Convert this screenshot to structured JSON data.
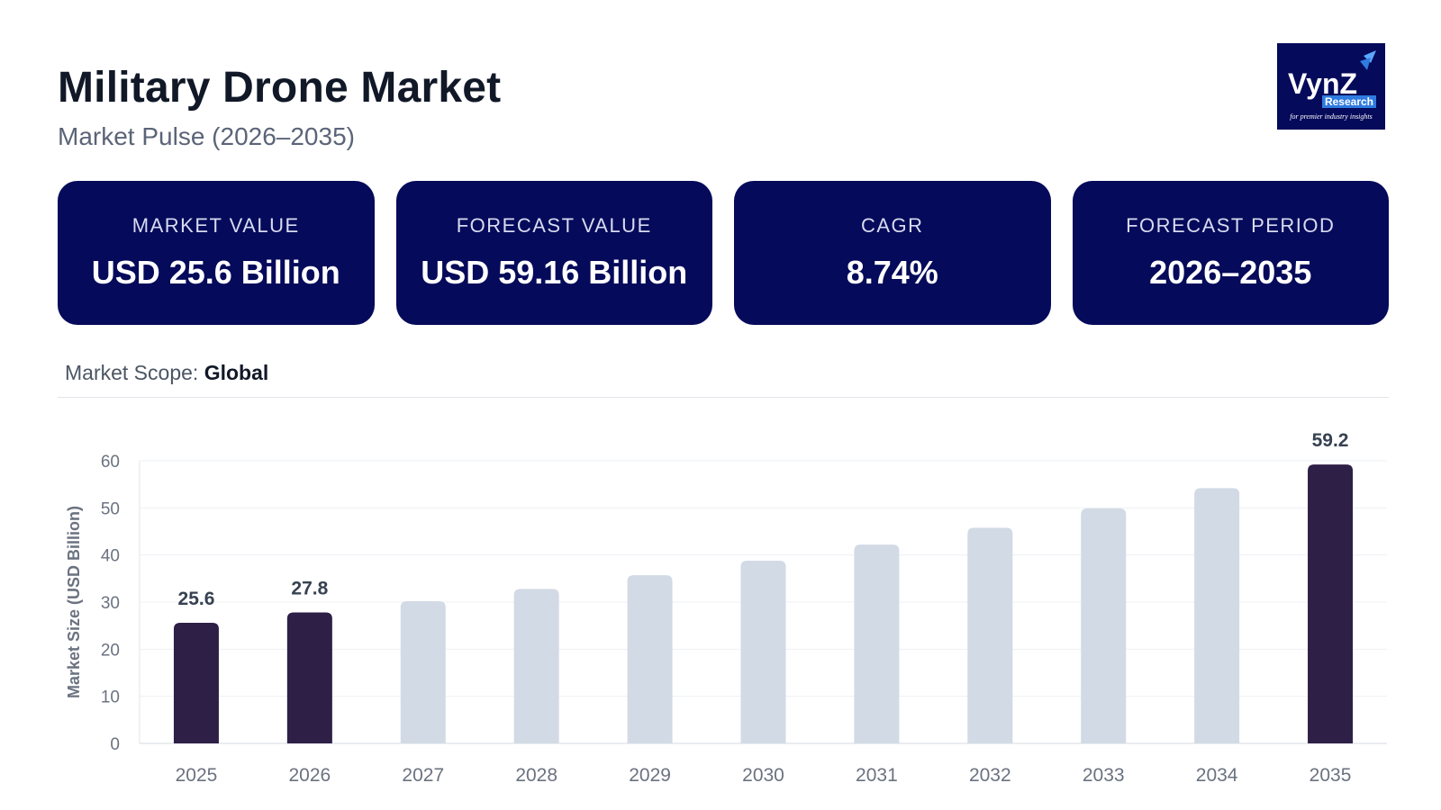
{
  "header": {
    "title": "Military Drone Market",
    "subtitle": "Market Pulse (2026–2035)"
  },
  "logo": {
    "brand": "VynZ",
    "subbrand": "Research",
    "tagline": "for premier industry insights"
  },
  "cards": [
    {
      "label": "MARKET VALUE",
      "value": "USD 25.6 Billion"
    },
    {
      "label": "FORECAST VALUE",
      "value": "USD 59.16 Billion"
    },
    {
      "label": "CAGR",
      "value": "8.74%"
    },
    {
      "label": "FORECAST PERIOD",
      "value": "2026–2035"
    }
  ],
  "scope": {
    "label": "Market Scope: ",
    "value": "Global"
  },
  "colors": {
    "navy": "#050a5a",
    "highlight_bar": "#2e1f47",
    "muted_bar": "#d2dae5"
  },
  "chart_data": {
    "type": "bar",
    "categories": [
      "2025",
      "2026",
      "2027",
      "2028",
      "2029",
      "2030",
      "2031",
      "2032",
      "2033",
      "2034",
      "2035"
    ],
    "values": [
      25.6,
      27.8,
      30.2,
      32.8,
      35.7,
      38.8,
      42.2,
      45.8,
      49.9,
      54.2,
      59.2
    ],
    "highlighted": [
      "2025",
      "2026",
      "2035"
    ],
    "data_labels": {
      "2025": "25.6",
      "2026": "27.8",
      "2035": "59.2"
    },
    "ylabel": "Market Size (USD Billion)",
    "ylim": [
      0,
      60
    ],
    "yticks": [
      0,
      10,
      20,
      30,
      40,
      50,
      60
    ],
    "grid": true,
    "legend": "none"
  }
}
